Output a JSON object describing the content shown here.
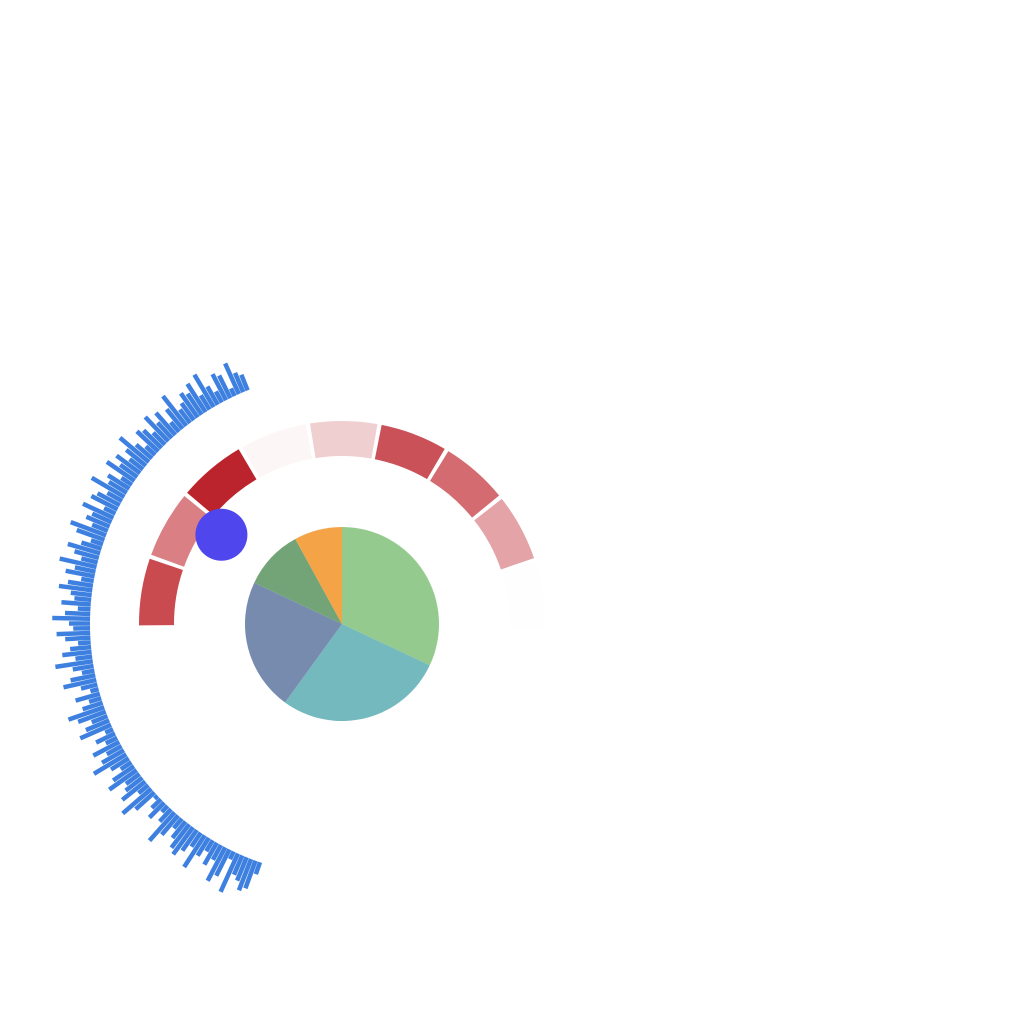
{
  "chart_data": [
    {
      "type": "pie",
      "slices": [
        {
          "value": 32,
          "color": "#94ca8d"
        },
        {
          "value": 28,
          "color": "#73b9bd"
        },
        {
          "value": 22,
          "color": "#778baf"
        },
        {
          "value": 10,
          "color": "#73a477"
        },
        {
          "value": 8,
          "color": "#f4a347"
        }
      ]
    },
    {
      "type": "heatmap",
      "shape": "radial-arc-segments",
      "segments": [
        {
          "value": 0.85,
          "color": "#c94a4f"
        },
        {
          "value": 0.6,
          "color": "#da7f84"
        },
        {
          "value": 1.0,
          "color": "#bb242c"
        },
        {
          "value": 0.05,
          "color": "#fcf6f6"
        },
        {
          "value": 0.25,
          "color": "#f0cfd1"
        },
        {
          "value": 0.8,
          "color": "#ca5157"
        },
        {
          "value": 0.7,
          "color": "#d46b70"
        },
        {
          "value": 0.45,
          "color": "#e3a3a7"
        },
        {
          "value": 0.02,
          "color": "#fefefe"
        }
      ]
    },
    {
      "type": "bar",
      "shape": "radial",
      "color": "#3e80e0",
      "values": [
        0.3,
        0.7,
        0.8,
        0.6,
        0.5,
        1.0,
        0.2,
        0.7,
        0.9,
        0.4,
        0.6,
        0.3,
        0.5,
        0.9,
        0.4,
        0.6,
        0.8,
        0.7,
        0.5,
        0.3,
        0.6,
        0.9,
        0.4,
        0.2,
        0.5,
        0.3,
        0.1,
        0.6,
        0.9,
        0.3,
        0.7,
        0.5,
        0.4,
        0.8,
        0.6,
        0.3,
        0.5,
        0.9,
        0.6,
        0.4,
        0.7,
        0.3,
        0.5,
        0.2,
        0.8,
        0.6,
        0.4,
        0.7,
        0.9,
        0.5,
        0.3,
        0.6,
        0.2,
        0.4,
        0.8,
        0.6,
        0.3,
        0.5,
        0.9,
        0.4,
        0.7,
        0.5,
        0.3,
        0.6,
        0.8,
        0.4,
        0.5,
        0.9,
        0.6,
        0.3,
        0.7,
        0.4,
        0.5,
        0.8,
        0.6,
        0.3,
        0.7,
        0.5,
        0.9,
        0.4,
        0.6,
        0.8,
        0.5,
        0.3,
        0.7,
        0.9,
        0.4,
        0.6,
        0.5,
        0.8,
        0.3,
        0.7,
        0.6,
        0.4,
        0.9,
        0.5,
        0.6,
        0.3,
        0.8,
        0.5,
        0.7,
        0.4,
        0.6,
        0.9,
        0.5,
        0.3,
        0.7,
        0.6,
        0.4,
        0.8,
        0.5,
        0.7,
        0.3,
        0.6,
        0.9,
        0.4,
        0.5,
        0.7,
        0.6,
        0.8,
        0.4,
        0.9,
        0.5,
        0.3,
        0.7,
        0.6,
        0.2,
        0.8,
        0.5,
        0.4
      ]
    },
    {
      "type": "scatter",
      "points": [
        {
          "color": "#5046ee"
        }
      ]
    }
  ]
}
